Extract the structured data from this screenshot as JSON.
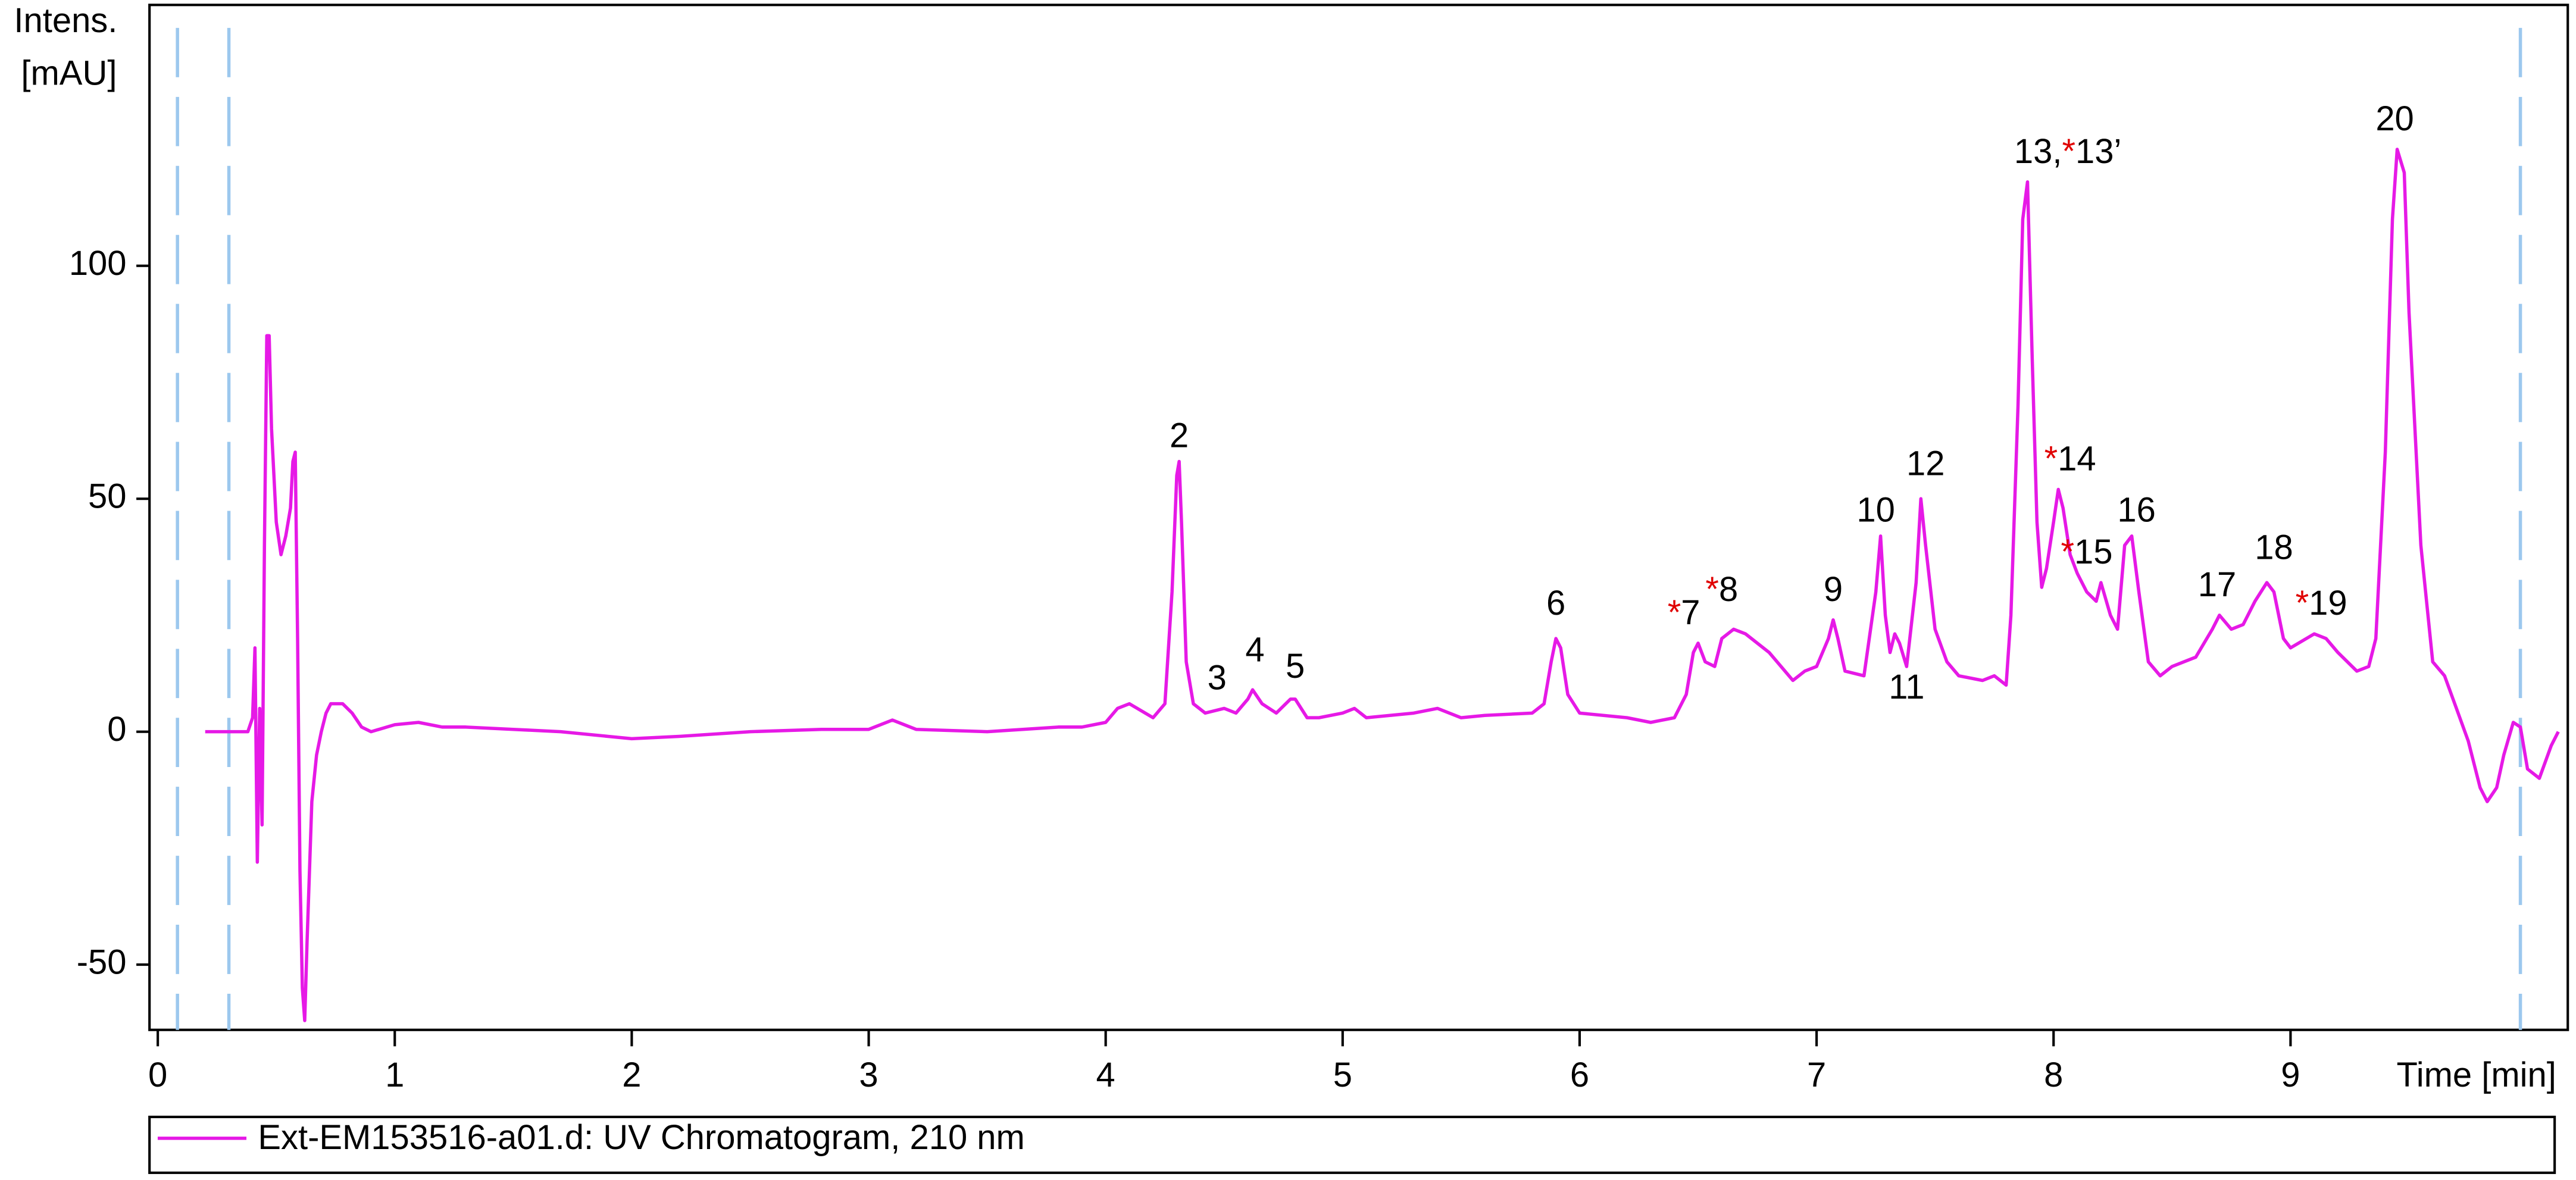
{
  "chart_data": {
    "type": "line",
    "ylabel": [
      "Intens.",
      "[mAU]"
    ],
    "xlabel": "Time [min]",
    "xlim": [
      -0.035,
      10.17
    ],
    "ylim": [
      -64,
      156
    ],
    "xticks": [
      0,
      1,
      2,
      3,
      4,
      5,
      6,
      7,
      8,
      9
    ],
    "yticks": [
      -50,
      0,
      50,
      100
    ],
    "vlines": [
      0.083,
      0.3,
      9.97
    ],
    "vline_color": "#9cc8ee",
    "highlight_color": "#e00000",
    "x": [
      0.2,
      0.38,
      0.4,
      0.41,
      0.42,
      0.43,
      0.44,
      0.45,
      0.46,
      0.47,
      0.48,
      0.5,
      0.52,
      0.54,
      0.56,
      0.57,
      0.58,
      0.59,
      0.6,
      0.61,
      0.62,
      0.63,
      0.65,
      0.67,
      0.69,
      0.71,
      0.73,
      0.78,
      0.82,
      0.86,
      0.9,
      1.0,
      1.1,
      1.2,
      1.3,
      1.5,
      1.7,
      1.9,
      2.0,
      2.2,
      2.5,
      2.8,
      3.0,
      3.1,
      3.2,
      3.5,
      3.8,
      3.9,
      4.0,
      4.05,
      4.1,
      4.15,
      4.2,
      4.25,
      4.28,
      4.3,
      4.31,
      4.32,
      4.34,
      4.37,
      4.42,
      4.5,
      4.55,
      4.6,
      4.62,
      4.66,
      4.72,
      4.78,
      4.8,
      4.85,
      4.9,
      5.0,
      5.05,
      5.1,
      5.3,
      5.4,
      5.5,
      5.6,
      5.8,
      5.85,
      5.88,
      5.9,
      5.92,
      5.95,
      6.0,
      6.2,
      6.3,
      6.4,
      6.45,
      6.48,
      6.5,
      6.53,
      6.57,
      6.6,
      6.65,
      6.7,
      6.8,
      6.9,
      6.95,
      7.0,
      7.05,
      7.07,
      7.09,
      7.12,
      7.2,
      7.25,
      7.27,
      7.29,
      7.31,
      7.33,
      7.35,
      7.38,
      7.42,
      7.44,
      7.46,
      7.5,
      7.55,
      7.6,
      7.7,
      7.75,
      7.8,
      7.82,
      7.85,
      7.87,
      7.89,
      7.91,
      7.93,
      7.95,
      7.97,
      8.0,
      8.02,
      8.04,
      8.07,
      8.1,
      8.14,
      8.18,
      8.2,
      8.24,
      8.27,
      8.3,
      8.33,
      8.36,
      8.4,
      8.45,
      8.5,
      8.6,
      8.67,
      8.7,
      8.75,
      8.8,
      8.85,
      8.9,
      8.93,
      8.97,
      9.0,
      9.1,
      9.15,
      9.2,
      9.28,
      9.33,
      9.36,
      9.4,
      9.43,
      9.45,
      9.48,
      9.5,
      9.55,
      9.6,
      9.65,
      9.7,
      9.75,
      9.8,
      9.83,
      9.87,
      9.9,
      9.94,
      9.97,
      10.0,
      10.05,
      10.1,
      10.13
    ],
    "series": [
      {
        "name": "Ext-EM153516-a01.d: UV Chromatogram, 210 nm",
        "color": "#e619e6",
        "values": [
          0,
          0,
          3,
          18,
          -28,
          5,
          -20,
          40,
          85,
          85,
          65,
          45,
          38,
          42,
          48,
          58,
          60,
          20,
          -30,
          -55,
          -62,
          -45,
          -15,
          -5,
          0,
          4,
          6,
          6,
          4,
          1,
          0,
          1.5,
          2,
          1,
          1,
          0.5,
          0,
          -1,
          -1.5,
          -1,
          0,
          0.5,
          0.5,
          2.5,
          0.5,
          0,
          1,
          1,
          2,
          5,
          6,
          4.5,
          3,
          6,
          30,
          55,
          58,
          45,
          15,
          6,
          4,
          5,
          4,
          7,
          9,
          6,
          4,
          7,
          7,
          3,
          3,
          4,
          5,
          3,
          4,
          5,
          3,
          3.5,
          4,
          6,
          15,
          20,
          18,
          8,
          4,
          3,
          2,
          3,
          8,
          17,
          19,
          15,
          14,
          20,
          22,
          21,
          17,
          11,
          13,
          14,
          20,
          24,
          20,
          13,
          12,
          30,
          42,
          25,
          17,
          21,
          19,
          14,
          32,
          50,
          40,
          22,
          15,
          12,
          11,
          12,
          10,
          25,
          70,
          110,
          118,
          80,
          45,
          31,
          35,
          45,
          52,
          48,
          38,
          34,
          30,
          28,
          32,
          25,
          22,
          40,
          42,
          30,
          15,
          12,
          14,
          16,
          22,
          25,
          22,
          23,
          28,
          32,
          30,
          20,
          18,
          21,
          20,
          17,
          13,
          14,
          20,
          60,
          110,
          125,
          120,
          90,
          40,
          15,
          12,
          5,
          -2,
          -12,
          -15,
          -12,
          -5,
          2,
          1,
          -8,
          -10,
          -3,
          0
        ]
      }
    ],
    "annotations": [
      {
        "text": "2",
        "x": 4.31,
        "y": 63
      },
      {
        "text": "3",
        "x": 4.47,
        "y": 11
      },
      {
        "text": "4",
        "x": 4.63,
        "y": 17
      },
      {
        "text": "5",
        "x": 4.8,
        "y": 13.5
      },
      {
        "text": "6",
        "x": 5.9,
        "y": 27
      },
      {
        "text": "*7",
        "x": 6.44,
        "y": 25
      },
      {
        "text": "*8",
        "x": 6.6,
        "y": 30
      },
      {
        "text": "9",
        "x": 7.07,
        "y": 30
      },
      {
        "text": "10",
        "x": 7.25,
        "y": 47
      },
      {
        "text": "11",
        "x": 7.38,
        "y": 9
      },
      {
        "text": "12",
        "x": 7.46,
        "y": 57
      },
      {
        "text": "13,*13’",
        "x": 8.06,
        "y": 124
      },
      {
        "text": "*14",
        "x": 8.07,
        "y": 58
      },
      {
        "text": "*15",
        "x": 8.14,
        "y": 38
      },
      {
        "text": "16",
        "x": 8.35,
        "y": 47
      },
      {
        "text": "17",
        "x": 8.69,
        "y": 31
      },
      {
        "text": "18",
        "x": 8.93,
        "y": 39
      },
      {
        "text": "*19",
        "x": 9.13,
        "y": 27
      },
      {
        "text": "20",
        "x": 9.44,
        "y": 131
      }
    ]
  }
}
